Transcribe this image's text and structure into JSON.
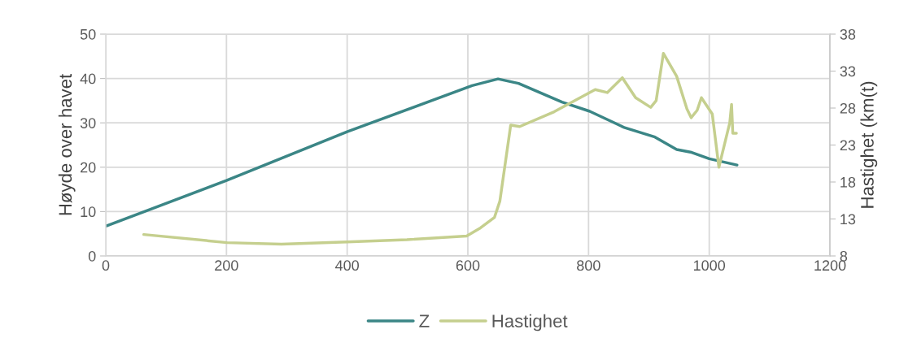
{
  "chart_data": {
    "type": "line",
    "ylabel": "Høyde over havet",
    "y2label": "Hastighet (km(t)",
    "xlim": [
      0,
      1200
    ],
    "xticks": [
      0,
      200,
      400,
      600,
      800,
      1000,
      1200
    ],
    "ylim": [
      0,
      50
    ],
    "yticks": [
      0,
      10,
      20,
      30,
      40,
      50
    ],
    "y2lim": [
      8,
      38
    ],
    "y2ticks": [
      8,
      13,
      18,
      23,
      28,
      33,
      38
    ],
    "grid": true,
    "legend": "bottom",
    "marker": "none",
    "line_style": "solid",
    "series": [
      {
        "name": "Z",
        "color": "#3b8686",
        "x": [
          0,
          200,
          400,
          607,
          650,
          684,
          756,
          802,
          860,
          910,
          946,
          969,
          1000,
          1046
        ],
        "values": [
          6.7,
          17.0,
          28.0,
          38.4,
          39.9,
          38.9,
          34.7,
          32.6,
          28.9,
          26.8,
          24.0,
          23.4,
          21.9,
          20.5
        ]
      },
      {
        "name": "Hastighet",
        "color": "#c5cf8e",
        "axis": "y2",
        "x": [
          63,
          201,
          291,
          400,
          499,
          598,
          621,
          644,
          653,
          671,
          686,
          743,
          811,
          831,
          856,
          878,
          903,
          912,
          924,
          946,
          963,
          970,
          980,
          987,
          1005,
          1016,
          1034,
          1037,
          1039,
          1045
        ],
        "values": [
          10.9,
          9.8,
          9.6,
          9.9,
          10.2,
          10.7,
          11.8,
          13.2,
          15.4,
          25.7,
          25.5,
          27.5,
          30.5,
          30.1,
          32.1,
          29.4,
          28.1,
          29.0,
          35.4,
          32.3,
          27.9,
          26.7,
          27.7,
          29.4,
          27.2,
          20.0,
          26.0,
          28.5,
          24.6,
          24.6
        ]
      }
    ]
  }
}
